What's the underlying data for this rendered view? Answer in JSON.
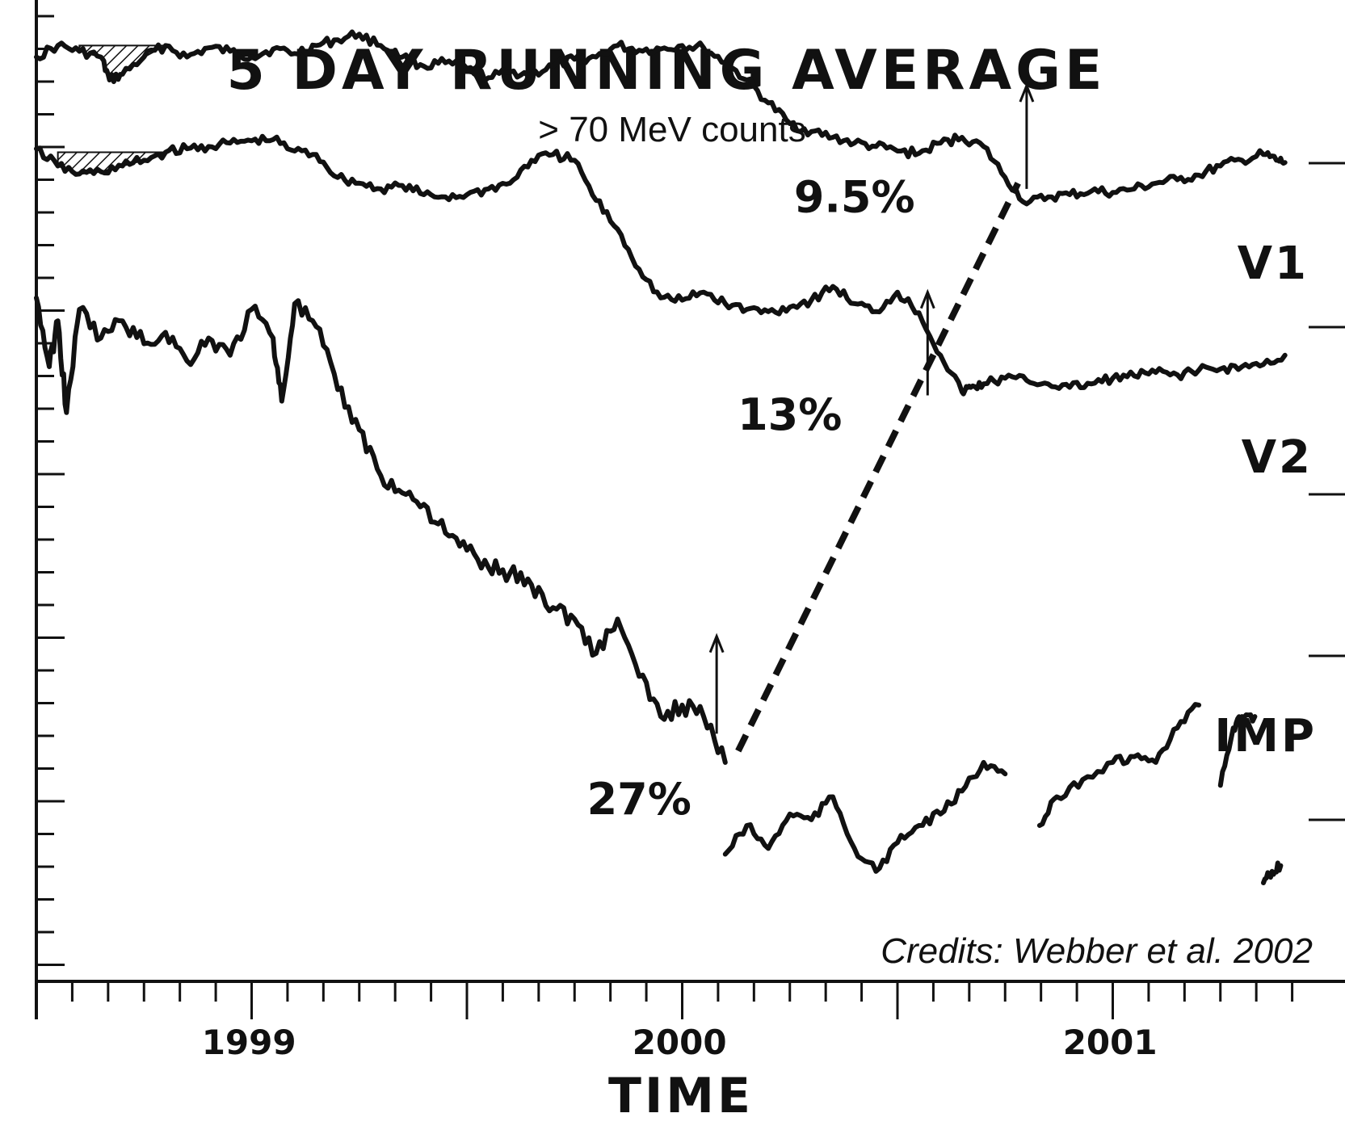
{
  "chart_data": {
    "type": "line",
    "title": "5 DAY RUNNING AVERAGE",
    "subtitle": "> 70 MeV counts",
    "credit": "Credits: Webber et al. 2002",
    "xlabel": "TIME",
    "x_tick_labels": [
      {
        "label": "1999",
        "x": 1999.0
      },
      {
        "label": "2000",
        "x": 2000.0
      },
      {
        "label": "2001",
        "x": 2001.0
      }
    ],
    "xlim": [
      1998.45,
      2001.45
    ],
    "grid": false,
    "series": [
      {
        "name": "V1",
        "x": [
          1998.45,
          1998.5,
          1998.55,
          1998.6,
          1998.62,
          1998.65,
          1998.7,
          1998.75,
          1998.8,
          1998.85,
          1998.9,
          1998.95,
          1999.0,
          1999.05,
          1999.1,
          1999.15,
          1999.2,
          1999.25,
          1999.3,
          1999.35,
          1999.4,
          1999.45,
          1999.5,
          1999.55,
          1999.6,
          1999.65,
          1999.7,
          1999.75,
          1999.8,
          1999.85,
          1999.9,
          1999.95,
          2000.0,
          2000.05,
          2000.1,
          2000.15,
          2000.2,
          2000.25,
          2000.3,
          2000.35,
          2000.4,
          2000.45,
          2000.5,
          2000.55,
          2000.6,
          2000.65,
          2000.7,
          2000.75,
          2000.8,
          2000.85,
          2000.9,
          2000.95,
          2001.0,
          2001.05,
          2001.1,
          2001.15,
          2001.2,
          2001.25,
          2001.3,
          2001.33,
          2001.35
        ],
        "y": [
          8.2,
          8.3,
          8.25,
          8.2,
          8.0,
          8.05,
          8.2,
          8.3,
          8.2,
          8.28,
          8.25,
          8.2,
          8.27,
          8.23,
          8.3,
          8.35,
          8.4,
          8.3,
          8.2,
          8.12,
          8.15,
          8.1,
          8.02,
          8.07,
          8.05,
          8.12,
          8.18,
          8.2,
          8.3,
          8.26,
          8.27,
          8.3,
          8.28,
          8.15,
          8.0,
          7.8,
          7.62,
          7.55,
          7.5,
          7.45,
          7.42,
          7.38,
          7.36,
          7.45,
          7.5,
          7.42,
          7.15,
          6.92,
          6.98,
          7.0,
          7.03,
          7.02,
          7.05,
          7.1,
          7.13,
          7.17,
          7.25,
          7.3,
          7.35,
          7.3,
          7.28
        ]
      },
      {
        "name": "V2",
        "x": [
          1998.45,
          1998.5,
          1998.55,
          1998.6,
          1998.65,
          1998.7,
          1998.75,
          1998.8,
          1998.85,
          1998.9,
          1998.95,
          1999.0,
          1999.05,
          1999.1,
          1999.15,
          1999.2,
          1999.25,
          1999.3,
          1999.35,
          1999.4,
          1999.45,
          1999.5,
          1999.55,
          1999.6,
          1999.65,
          1999.7,
          1999.75,
          1999.8,
          1999.85,
          1999.9,
          1999.95,
          2000.0,
          2000.05,
          2000.1,
          2000.15,
          2000.2,
          2000.25,
          2000.3,
          2000.35,
          2000.4,
          2000.45,
          2000.5,
          2000.55,
          2000.6,
          2000.62,
          2000.65,
          2000.7,
          2000.75,
          2000.8,
          2000.85,
          2000.9,
          2000.95,
          2001.0,
          2001.05,
          2001.1,
          2001.15,
          2001.2,
          2001.25,
          2001.3,
          2001.35
        ],
        "y": [
          7.4,
          7.25,
          7.18,
          7.2,
          7.25,
          7.3,
          7.37,
          7.4,
          7.42,
          7.45,
          7.47,
          7.48,
          7.38,
          7.35,
          7.15,
          7.1,
          7.05,
          7.08,
          7.0,
          6.98,
          7.0,
          7.05,
          7.1,
          7.3,
          7.35,
          7.3,
          6.95,
          6.7,
          6.35,
          6.1,
          6.08,
          6.15,
          6.05,
          6.0,
          5.98,
          6.02,
          6.08,
          6.2,
          6.05,
          5.98,
          6.15,
          5.97,
          5.6,
          5.28,
          5.32,
          5.35,
          5.4,
          5.38,
          5.35,
          5.32,
          5.35,
          5.4,
          5.42,
          5.45,
          5.43,
          5.47,
          5.48,
          5.5,
          5.52,
          5.6
        ]
      },
      {
        "name": "IMP",
        "x": [
          1998.45,
          1998.48,
          1998.5,
          1998.52,
          1998.55,
          1998.6,
          1998.65,
          1998.7,
          1998.75,
          1998.8,
          1998.85,
          1998.9,
          1998.95,
          1999.0,
          1999.02,
          1999.05,
          1999.1,
          1999.15,
          1999.2,
          1999.25,
          1999.3,
          1999.35,
          1999.4,
          1999.45,
          1999.5,
          1999.55,
          1999.6,
          1999.65,
          1999.7,
          1999.75,
          1999.8,
          1999.85,
          1999.9,
          1999.95,
          2000.0,
          2000.05
        ],
        "y": [
          6.1,
          5.5,
          5.9,
          5.1,
          6.0,
          5.75,
          5.9,
          5.7,
          5.8,
          5.55,
          5.75,
          5.6,
          6.0,
          5.75,
          5.2,
          6.05,
          5.85,
          5.3,
          4.95,
          4.55,
          4.4,
          4.3,
          4.05,
          3.9,
          3.75,
          3.7,
          3.6,
          3.4,
          3.3,
          3.0,
          3.3,
          2.8,
          2.45,
          2.55,
          2.45,
          2.05
        ]
      },
      {
        "name": "IMP-b",
        "x": [
          2000.05,
          2000.1,
          2000.15,
          2000.2,
          2000.25,
          2000.3,
          2000.35,
          2000.4,
          2000.45,
          2000.5,
          2000.55,
          2000.6,
          2000.65,
          2000.7
        ],
        "y": [
          1.25,
          1.5,
          1.3,
          1.6,
          1.55,
          1.75,
          1.3,
          1.1,
          1.35,
          1.5,
          1.6,
          1.8,
          2.05,
          1.95
        ]
      },
      {
        "name": "IMP-c",
        "x": [
          2000.78,
          2000.82,
          2000.88,
          2000.95,
          2001.0,
          2001.05,
          2001.1,
          2001.15
        ],
        "y": [
          1.5,
          1.75,
          1.9,
          2.05,
          2.1,
          2.05,
          2.35,
          2.55
        ]
      },
      {
        "name": "IMP-d",
        "x": [
          2001.2,
          2001.23,
          2001.25,
          2001.28
        ],
        "y": [
          1.85,
          2.35,
          2.45,
          2.45
        ]
      },
      {
        "name": "IMP-e",
        "x": [
          2001.3,
          2001.32,
          2001.34
        ],
        "y": [
          1.0,
          1.1,
          1.15
        ]
      }
    ],
    "series_labels": [
      "V1",
      "V2",
      "IMP"
    ],
    "annotations": [
      {
        "text": "9.5%",
        "x": 2000.35,
        "y": 6.85
      },
      {
        "text": "13%",
        "x": 2000.2,
        "y": 4.95
      },
      {
        "text": "27%",
        "x": 1999.85,
        "y": 1.6
      }
    ],
    "dashed_line": {
      "from": [
        2000.08,
        2.15
      ],
      "to": [
        2000.73,
        7.1
      ]
    },
    "arrows": [
      {
        "x": 2000.03,
        "y_from": 2.3,
        "y_to": 3.15
      },
      {
        "x": 2000.52,
        "y_from": 5.25,
        "y_to": 6.15
      },
      {
        "x": 2000.75,
        "y_from": 7.05,
        "y_to": 7.95
      }
    ],
    "hatched_regions": [
      {
        "series": "V1",
        "x_start": 1998.55,
        "x_end": 1998.75
      },
      {
        "series": "V2",
        "x_start": 1998.48,
        "x_end": 1998.75
      }
    ]
  }
}
